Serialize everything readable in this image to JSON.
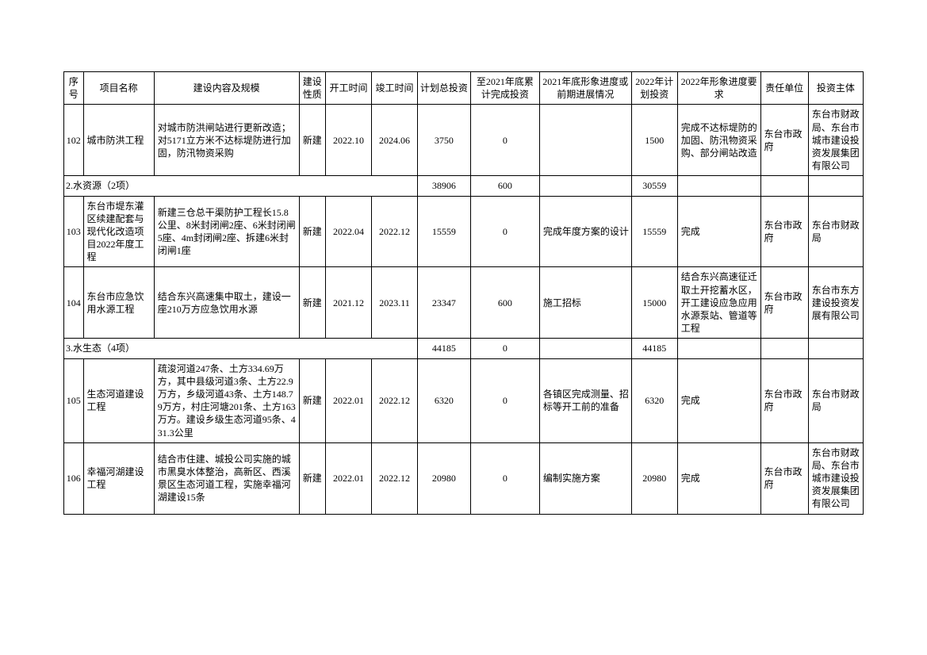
{
  "headers": {
    "seq": "序号",
    "name": "项目名称",
    "desc": "建设内容及规模",
    "nature": "建设性质",
    "start": "开工时间",
    "end": "竣工时间",
    "total": "计划总投资",
    "cum": "至2021年底累计完成投资",
    "prog21": "2021年底形象进度或前期进展情况",
    "plan22": "2022年计划投资",
    "req22": "2022年形象进度要求",
    "resp": "责任单位",
    "inv": "投资主体"
  },
  "rows": [
    {
      "type": "data",
      "seq": "102",
      "name": "城市防洪工程",
      "desc": "对城市防洪闸站进行更新改造；对5171立方米不达标堤防进行加固，防汛物资采购",
      "nature": "新建",
      "start": "2022.10",
      "end": "2024.06",
      "total": "3750",
      "cum": "0",
      "prog21": "",
      "plan22": "1500",
      "req22": "完成不达标堤防的加固、防汛物资采购、部分闸站改造",
      "resp": "东台市政府",
      "inv": "东台市财政局、东台市城市建设投资发展集团有限公司"
    },
    {
      "type": "section",
      "label": "2.水资源（2项）",
      "total": "38906",
      "cum": "600",
      "plan22": "30559"
    },
    {
      "type": "data",
      "seq": "103",
      "name": "东台市堤东灌区续建配套与现代化改造项目2022年度工程",
      "desc": "新建三仓总干渠防护工程长15.8公里、8米封闭闸2座、6米封闭闸5座、4m封闭闸2座、拆建6米封闭闸1座",
      "nature": "新建",
      "start": "2022.04",
      "end": "2022.12",
      "total": "15559",
      "cum": "0",
      "prog21": "完成年度方案的设计",
      "plan22": "15559",
      "req22": "完成",
      "resp": "东台市政府",
      "inv": "东台市财政局"
    },
    {
      "type": "data",
      "seq": "104",
      "name": "东台市应急饮用水源工程",
      "desc": "结合东兴高速集中取土，建设一座210万方应急饮用水源",
      "nature": "新建",
      "start": "2021.12",
      "end": "2023.11",
      "total": "23347",
      "cum": "600",
      "prog21": "施工招标",
      "plan22": "15000",
      "req22": "结合东兴高速征迁取土开挖蓄水区，开工建设应急应用水源泵站、管道等工程",
      "resp": "东台市政府",
      "inv": "东台市东方建设投资发展有限公司"
    },
    {
      "type": "section",
      "label": "3.水生态（4项）",
      "total": "44185",
      "cum": "0",
      "plan22": "44185"
    },
    {
      "type": "data",
      "seq": "105",
      "name": "生态河道建设工程",
      "desc": "疏浚河道247条、土方334.69万方，其中县级河道3条、土方22.9万方，乡级河道43条、土方148.79万方，村庄河塘201条、土方163万方。建设乡级生态河道95条、431.3公里",
      "nature": "新建",
      "start": "2022.01",
      "end": "2022.12",
      "total": "6320",
      "cum": "0",
      "prog21": "各镇区完成测量、招标等开工前的准备",
      "plan22": "6320",
      "req22": "完成",
      "resp": "东台市政府",
      "inv": "东台市财政局"
    },
    {
      "type": "data",
      "seq": "106",
      "name": "幸福河湖建设工程",
      "desc": "结合市住建、城投公司实施的城市黑臭水体整治，高新区、西溪景区生态河道工程，实施幸福河湖建设15条",
      "nature": "新建",
      "start": "2022.01",
      "end": "2022.12",
      "total": "20980",
      "cum": "0",
      "prog21": "编制实施方案",
      "plan22": "20980",
      "req22": "完成",
      "resp": "东台市政府",
      "inv": "东台市财政局、东台市城市建设投资发展集团有限公司"
    }
  ]
}
